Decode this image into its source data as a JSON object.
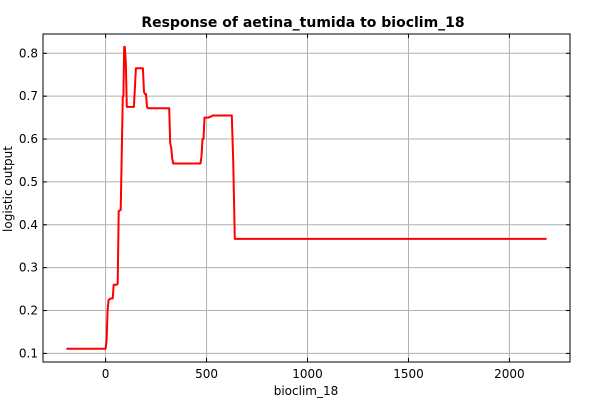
{
  "chart_data": {
    "type": "line",
    "title": "Response of aetina_tumida to bioclim_18",
    "xlabel": "bioclim_18",
    "ylabel": "logistic output",
    "xlim": [
      -310,
      2300
    ],
    "ylim": [
      0.08,
      0.845
    ],
    "x_ticks": [
      0,
      500,
      1000,
      1500,
      2000
    ],
    "y_ticks": [
      0.1,
      0.2,
      0.3,
      0.4,
      0.5,
      0.6,
      0.7,
      0.8
    ],
    "x_tick_labels": [
      "0",
      "500",
      "1000",
      "1500",
      "2000"
    ],
    "y_tick_labels": [
      "0.1",
      "0.2",
      "0.3",
      "0.4",
      "0.5",
      "0.6",
      "0.7",
      "0.8"
    ],
    "grid": true,
    "legend": "none",
    "series": [
      {
        "color": "#ff0000",
        "x": [
          -190,
          0,
          5,
          10,
          15,
          25,
          35,
          40,
          55,
          60,
          65,
          75,
          80,
          85,
          88,
          92,
          95,
          100,
          105,
          110,
          140,
          150,
          155,
          185,
          190,
          195,
          200,
          205,
          210,
          310,
          315,
          320,
          325,
          330,
          335,
          340,
          470,
          475,
          480,
          485,
          490,
          500,
          510,
          515,
          520,
          530,
          550,
          620,
          625,
          632,
          640,
          2180
        ],
        "y": [
          0.111,
          0.111,
          0.13,
          0.2,
          0.225,
          0.228,
          0.228,
          0.26,
          0.26,
          0.263,
          0.432,
          0.435,
          0.56,
          0.7,
          0.7,
          0.815,
          0.815,
          0.78,
          0.675,
          0.675,
          0.675,
          0.765,
          0.765,
          0.765,
          0.71,
          0.705,
          0.705,
          0.675,
          0.672,
          0.672,
          0.672,
          0.59,
          0.58,
          0.555,
          0.543,
          0.543,
          0.543,
          0.56,
          0.6,
          0.6,
          0.65,
          0.65,
          0.65,
          0.652,
          0.652,
          0.655,
          0.655,
          0.655,
          0.655,
          0.55,
          0.367,
          0.367
        ]
      }
    ]
  }
}
